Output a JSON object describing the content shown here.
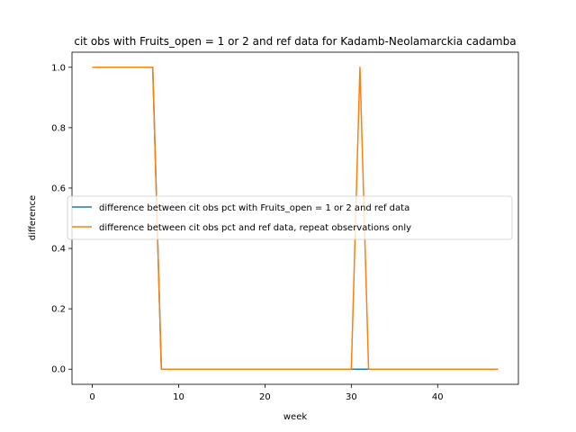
{
  "chart_data": {
    "type": "line",
    "title": "cit obs with Fruits_open = 1 or 2 and ref data for Kadamb-Neolamarckia cadamba",
    "xlabel": "week",
    "ylabel": "difference",
    "xlim": [
      -2.35,
      49.35
    ],
    "ylim": [
      -0.05,
      1.05
    ],
    "xticks": [
      0,
      10,
      20,
      30,
      40
    ],
    "yticks": [
      0.0,
      0.2,
      0.4,
      0.6,
      0.8,
      1.0
    ],
    "xtick_labels": [
      "0",
      "10",
      "20",
      "30",
      "40"
    ],
    "ytick_labels": [
      "0.0",
      "0.2",
      "0.4",
      "0.6",
      "0.8",
      "1.0"
    ],
    "grid": false,
    "legend_position": "center-left",
    "series": [
      {
        "name": "difference between cit obs pct with Fruits_open = 1 or 2 and ref data",
        "color": "#1f77b4",
        "x": [
          0,
          1,
          2,
          3,
          4,
          5,
          6,
          7,
          8,
          9,
          10,
          11,
          12,
          13,
          14,
          15,
          16,
          17,
          18,
          19,
          20,
          21,
          22,
          23,
          24,
          25,
          26,
          27,
          28,
          29,
          30,
          31,
          32,
          33,
          34,
          35,
          36,
          37,
          38,
          39,
          40,
          41,
          42,
          43,
          44,
          45,
          46,
          47
        ],
        "y": [
          1,
          1,
          1,
          1,
          1,
          1,
          1,
          1,
          0,
          0,
          0,
          0,
          0,
          0,
          0,
          0,
          0,
          0,
          0,
          0,
          0,
          0,
          0,
          0,
          0,
          0,
          0,
          0,
          0,
          0,
          0,
          0,
          0,
          0,
          0,
          0,
          0,
          0,
          0,
          0,
          0,
          0,
          0,
          0,
          0,
          0,
          0,
          0
        ]
      },
      {
        "name": "difference between cit obs pct and ref data, repeat observations only",
        "color": "#ff7f0e",
        "x": [
          0,
          1,
          2,
          3,
          4,
          5,
          6,
          7,
          8,
          9,
          10,
          11,
          12,
          13,
          14,
          15,
          16,
          17,
          18,
          19,
          20,
          21,
          22,
          23,
          24,
          25,
          26,
          27,
          28,
          29,
          30,
          31,
          32,
          33,
          34,
          35,
          36,
          37,
          38,
          39,
          40,
          41,
          42,
          43,
          44,
          45,
          46,
          47
        ],
        "y": [
          1,
          1,
          1,
          1,
          1,
          1,
          1,
          1,
          0,
          0,
          0,
          0,
          0,
          0,
          0,
          0,
          0,
          0,
          0,
          0,
          0,
          0,
          0,
          0,
          0,
          0,
          0,
          0,
          0,
          0,
          0,
          1,
          0,
          0,
          0,
          0,
          0,
          0,
          0,
          0,
          0,
          0,
          0,
          0,
          0,
          0,
          0,
          0
        ]
      }
    ]
  }
}
